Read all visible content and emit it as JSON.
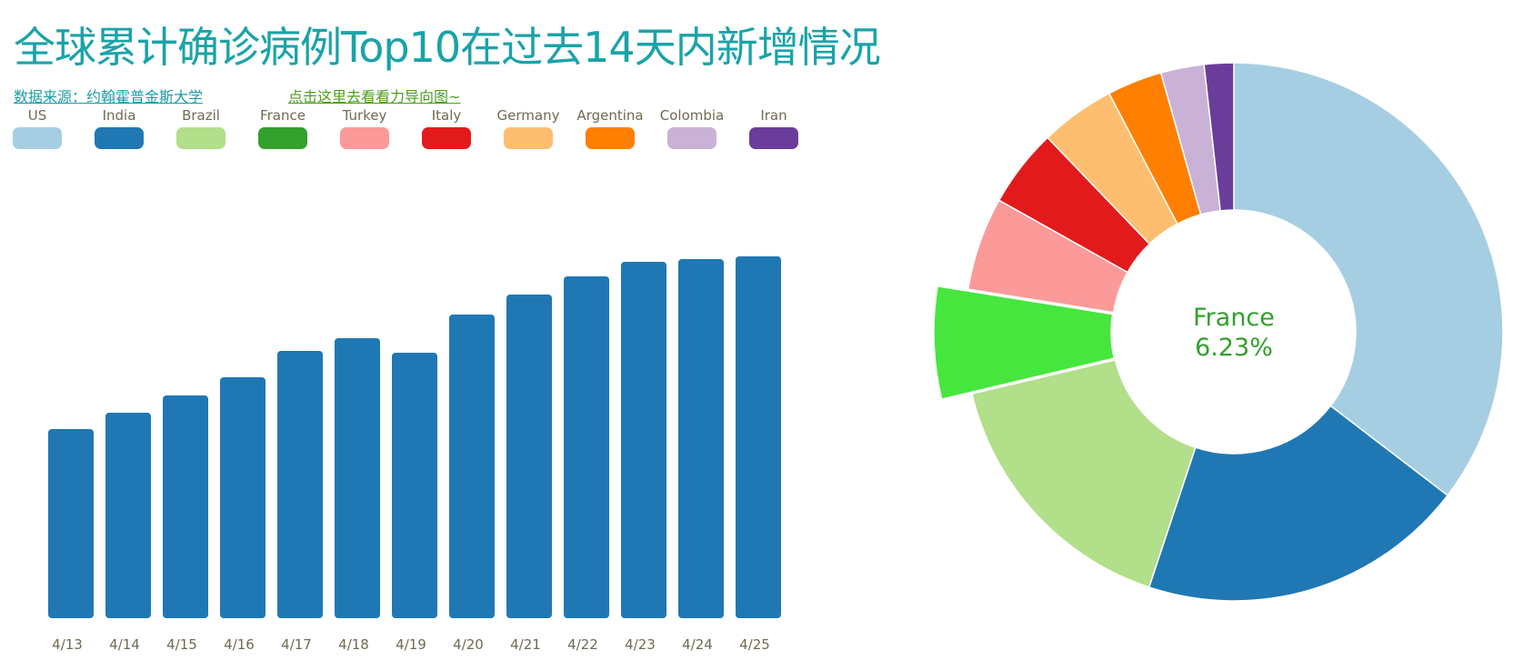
{
  "title": "全球累计确诊病例Top10在过去14天内新增情况",
  "links": {
    "source": "数据来源：约翰霍普金斯大学",
    "guide": "点击这里去看看力导向图~"
  },
  "chart_data": [
    {
      "type": "bar",
      "categories": [
        "4/13",
        "4/14",
        "4/15",
        "4/16",
        "4/17",
        "4/18",
        "4/19",
        "4/20",
        "4/21",
        "4/22",
        "4/23",
        "4/24",
        "4/25"
      ],
      "values": [
        208,
        226,
        245,
        265,
        294,
        308,
        292,
        334,
        356,
        376,
        392,
        395,
        398
      ],
      "ylim": [
        0,
        420
      ],
      "color": "#1f78b4",
      "grid": false
    },
    {
      "type": "pie",
      "donut": true,
      "labels": [
        "US",
        "India",
        "Brazil",
        "France",
        "Turkey",
        "Italy",
        "Germany",
        "Argentina",
        "Colombia",
        "Iran"
      ],
      "values": [
        35.4,
        19.7,
        16.2,
        6.23,
        5.6,
        4.7,
        4.5,
        3.3,
        2.6,
        1.77
      ],
      "colors": [
        "#a6cee3",
        "#1f78b4",
        "#b2df8a",
        "#33a02c",
        "#fb9a99",
        "#e31a1c",
        "#fdbf6f",
        "#ff7f00",
        "#cab2d6",
        "#6a3d9a"
      ],
      "highlighted": {
        "label": "France",
        "percent": "6.23%",
        "color": "#47e63e"
      }
    }
  ]
}
